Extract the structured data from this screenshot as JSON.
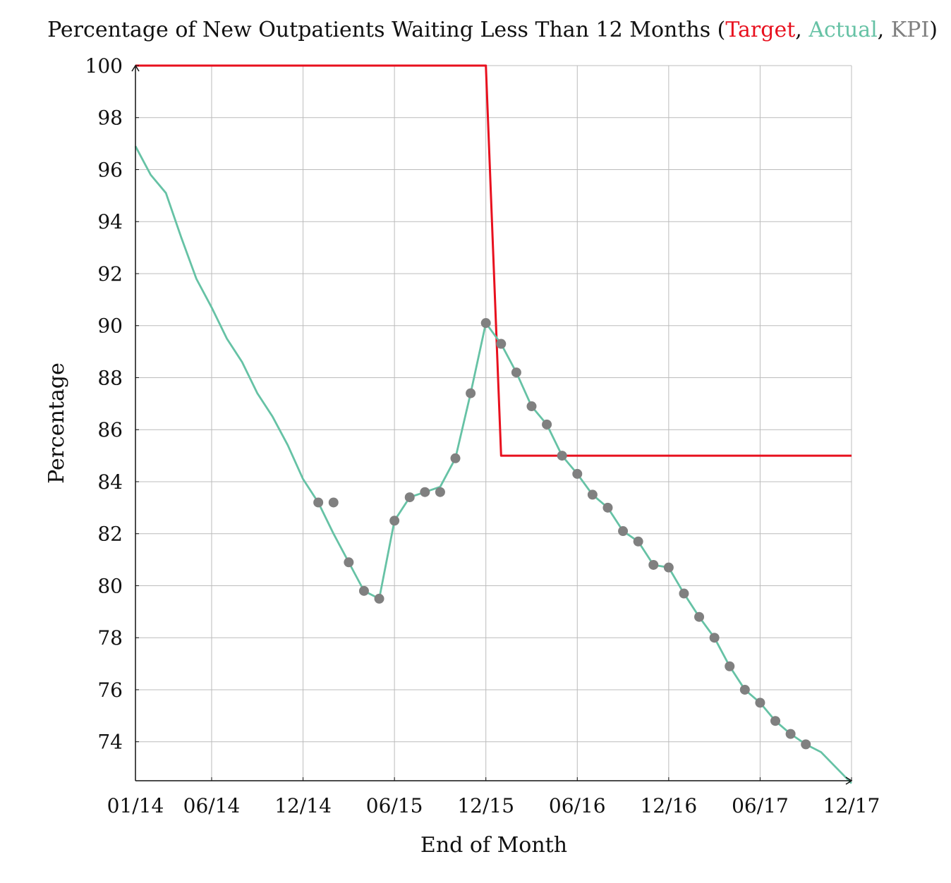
{
  "chart_data": {
    "type": "line",
    "title": {
      "prefix": "Percentage of New Outpatients Waiting Less Than 12 Months (",
      "sep1": ", ",
      "sep2": ", ",
      "suffix": ")"
    },
    "xlabel": "End of Month",
    "ylabel": "Percentage",
    "x_range": [
      "2014-01",
      "2017-12"
    ],
    "ylim": [
      72.5,
      100
    ],
    "y_ticks": [
      74,
      76,
      78,
      80,
      82,
      84,
      86,
      88,
      90,
      92,
      94,
      96,
      98,
      100
    ],
    "x_ticks": [
      {
        "date": "2014-01",
        "label": "01/14"
      },
      {
        "date": "2014-06",
        "label": "06/14"
      },
      {
        "date": "2014-12",
        "label": "12/14"
      },
      {
        "date": "2015-06",
        "label": "06/15"
      },
      {
        "date": "2015-12",
        "label": "12/15"
      },
      {
        "date": "2016-06",
        "label": "06/16"
      },
      {
        "date": "2016-12",
        "label": "12/16"
      },
      {
        "date": "2017-06",
        "label": "06/17"
      },
      {
        "date": "2017-12",
        "label": "12/17"
      }
    ],
    "grid": true,
    "series": [
      {
        "name": "Target",
        "color": "#e8101e",
        "style": "line",
        "points": [
          [
            "2014-01",
            100
          ],
          [
            "2015-12",
            100
          ],
          [
            "2016-01",
            85
          ],
          [
            "2017-12",
            85
          ]
        ]
      },
      {
        "name": "Actual",
        "color": "#66c2a5",
        "style": "line",
        "points": [
          [
            "2014-01",
            96.9
          ],
          [
            "2014-02",
            95.8
          ],
          [
            "2014-03",
            95.1
          ],
          [
            "2014-04",
            93.4
          ],
          [
            "2014-05",
            91.8
          ],
          [
            "2014-06",
            90.7
          ],
          [
            "2014-07",
            89.5
          ],
          [
            "2014-08",
            88.6
          ],
          [
            "2014-09",
            87.4
          ],
          [
            "2014-10",
            86.5
          ],
          [
            "2014-11",
            85.4
          ],
          [
            "2014-12",
            84.1
          ],
          [
            "2015-01",
            83.2
          ],
          [
            "2015-02",
            82.0
          ],
          [
            "2015-03",
            80.9
          ],
          [
            "2015-04",
            79.8
          ],
          [
            "2015-05",
            79.5
          ],
          [
            "2015-06",
            82.5
          ],
          [
            "2015-07",
            83.4
          ],
          [
            "2015-08",
            83.6
          ],
          [
            "2015-09",
            83.8
          ],
          [
            "2015-10",
            84.9
          ],
          [
            "2015-11",
            87.4
          ],
          [
            "2015-12",
            90.1
          ],
          [
            "2016-01",
            89.3
          ],
          [
            "2016-02",
            88.2
          ],
          [
            "2016-03",
            86.9
          ],
          [
            "2016-04",
            86.2
          ],
          [
            "2016-05",
            85.0
          ],
          [
            "2016-06",
            84.3
          ],
          [
            "2016-07",
            83.5
          ],
          [
            "2016-08",
            83.0
          ],
          [
            "2016-09",
            82.1
          ],
          [
            "2016-10",
            81.7
          ],
          [
            "2016-11",
            80.8
          ],
          [
            "2016-12",
            80.7
          ],
          [
            "2017-01",
            79.7
          ],
          [
            "2017-02",
            78.8
          ],
          [
            "2017-03",
            78.0
          ],
          [
            "2017-04",
            76.9
          ],
          [
            "2017-05",
            76.0
          ],
          [
            "2017-06",
            75.5
          ],
          [
            "2017-07",
            74.8
          ],
          [
            "2017-08",
            74.3
          ],
          [
            "2017-09",
            73.9
          ],
          [
            "2017-10",
            73.6
          ],
          [
            "2017-11",
            73.0
          ],
          [
            "2017-12",
            72.4
          ]
        ]
      },
      {
        "name": "KPI",
        "color": "#808080",
        "style": "markers",
        "points": [
          [
            "2015-01",
            83.2
          ],
          [
            "2015-02",
            83.2
          ],
          [
            "2015-03",
            80.9
          ],
          [
            "2015-04",
            79.8
          ],
          [
            "2015-05",
            79.5
          ],
          [
            "2015-06",
            82.5
          ],
          [
            "2015-07",
            83.4
          ],
          [
            "2015-08",
            83.6
          ],
          [
            "2015-09",
            83.6
          ],
          [
            "2015-10",
            84.9
          ],
          [
            "2015-11",
            87.4
          ],
          [
            "2015-12",
            90.1
          ],
          [
            "2016-01",
            89.3
          ],
          [
            "2016-02",
            88.2
          ],
          [
            "2016-03",
            86.9
          ],
          [
            "2016-04",
            86.2
          ],
          [
            "2016-05",
            85.0
          ],
          [
            "2016-06",
            84.3
          ],
          [
            "2016-07",
            83.5
          ],
          [
            "2016-08",
            83.0
          ],
          [
            "2016-09",
            82.1
          ],
          [
            "2016-10",
            81.7
          ],
          [
            "2016-11",
            80.8
          ],
          [
            "2016-12",
            80.7
          ],
          [
            "2017-01",
            79.7
          ],
          [
            "2017-02",
            78.8
          ],
          [
            "2017-03",
            78.0
          ],
          [
            "2017-04",
            76.9
          ],
          [
            "2017-05",
            76.0
          ],
          [
            "2017-06",
            75.5
          ],
          [
            "2017-07",
            74.8
          ],
          [
            "2017-08",
            74.3
          ],
          [
            "2017-09",
            73.9
          ]
        ]
      }
    ]
  }
}
